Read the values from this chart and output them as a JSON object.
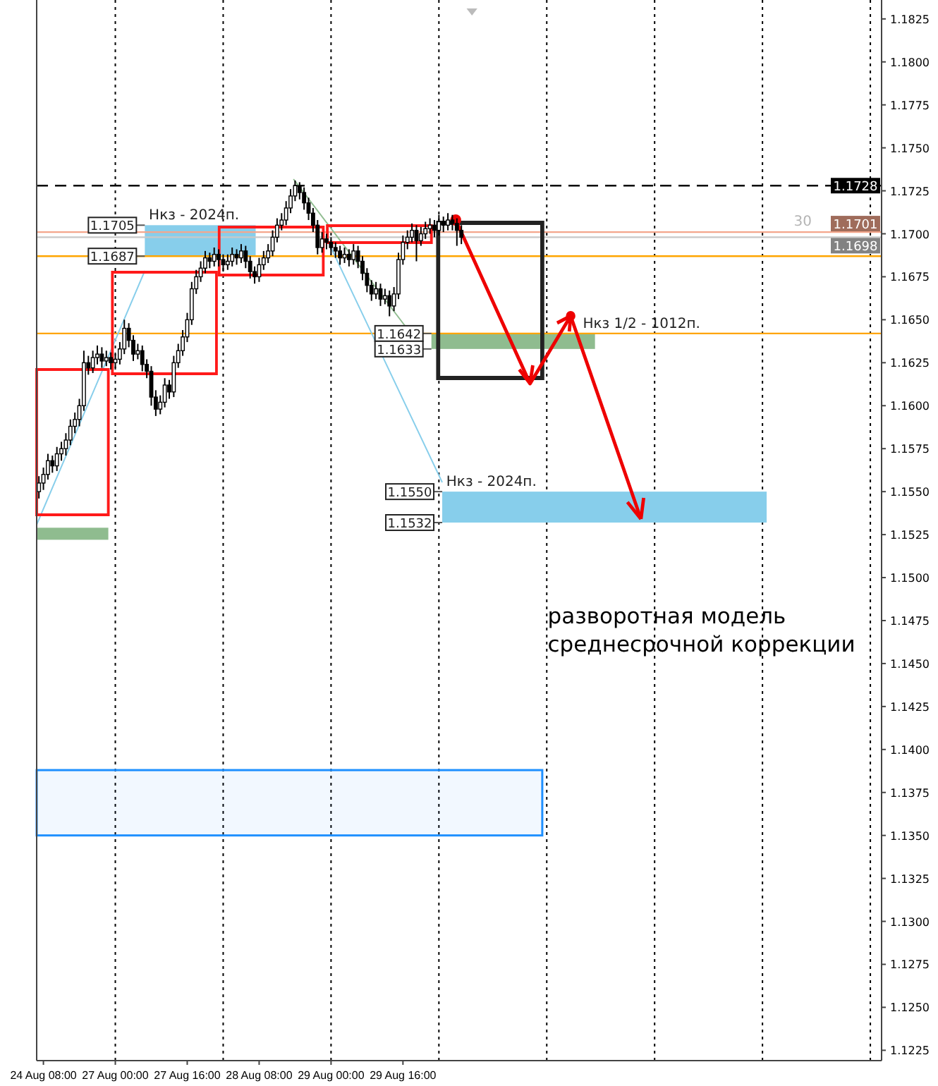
{
  "chart_data": {
    "type": "candlestick",
    "categories": [
      null,
      "24 Aug 08:00",
      null,
      null,
      null,
      null,
      null,
      null,
      null,
      null,
      null,
      null,
      null,
      null,
      null,
      null,
      null,
      "27 Aug 00:00",
      null,
      null,
      null,
      null,
      null,
      null,
      null,
      null,
      null,
      null,
      null,
      null,
      null,
      null,
      null,
      "27 Aug 16:00",
      null,
      null,
      null,
      null,
      null,
      null,
      null,
      null,
      null,
      null,
      null,
      null,
      null,
      null,
      null,
      "28 Aug 08:00",
      null,
      null,
      null,
      null,
      null,
      null,
      null,
      null,
      null,
      null,
      null,
      null,
      null,
      null,
      null,
      "29 Aug 00:00",
      null,
      null,
      null,
      null,
      null,
      null,
      null,
      null,
      null,
      null,
      null,
      null,
      null,
      null,
      null,
      "29 Aug 16:00",
      null,
      null,
      null,
      null,
      null,
      null,
      null,
      null,
      null,
      null,
      null,
      null,
      null,
      null,
      null,
      null,
      null,
      null,
      null,
      null,
      null,
      null,
      null,
      null,
      null,
      null,
      null,
      null,
      null,
      null,
      null,
      null,
      null,
      null,
      null,
      null,
      null,
      null,
      null,
      null,
      null,
      null,
      null,
      null,
      null,
      null,
      null,
      null,
      null,
      null,
      null,
      null,
      null,
      null,
      null,
      null,
      null,
      null,
      null,
      null,
      null,
      null,
      null,
      null,
      null,
      null,
      null,
      null,
      null,
      null,
      null,
      null,
      null,
      null,
      null,
      null,
      null,
      null,
      null,
      null,
      null,
      null,
      null,
      null,
      null,
      null,
      null,
      null,
      null,
      null,
      null,
      null,
      null,
      null,
      null,
      null,
      null,
      null,
      null,
      null,
      null,
      null,
      null,
      null,
      null,
      null
    ],
    "ohlc": [
      [
        1.155,
        1.1559,
        1.1546,
        1.1555
      ],
      [
        1.1555,
        1.1564,
        1.1551,
        1.156
      ],
      [
        1.156,
        1.1572,
        1.1557,
        1.1568
      ],
      [
        1.1568,
        1.1571,
        1.1561,
        1.1565
      ],
      [
        1.1565,
        1.1576,
        1.1562,
        1.1572
      ],
      [
        1.1572,
        1.1579,
        1.1568,
        1.1575
      ],
      [
        1.1575,
        1.1584,
        1.1571,
        1.158
      ],
      [
        1.158,
        1.1592,
        1.1577,
        1.1588
      ],
      [
        1.1588,
        1.1596,
        1.1584,
        1.1592
      ],
      [
        1.1592,
        1.1604,
        1.1588,
        1.16
      ],
      [
        1.16,
        1.1632,
        1.1597,
        1.1625
      ],
      [
        1.1625,
        1.1629,
        1.1618,
        1.1622
      ],
      [
        1.1622,
        1.1632,
        1.1619,
        1.1628
      ],
      [
        1.1628,
        1.1635,
        1.1624,
        1.163
      ],
      [
        1.163,
        1.1634,
        1.1622,
        1.1626
      ],
      [
        1.1626,
        1.1632,
        1.1623,
        1.1628
      ],
      [
        1.1628,
        1.1631,
        1.1621,
        1.1625
      ],
      [
        1.1625,
        1.163,
        1.1622,
        1.1627
      ],
      [
        1.1627,
        1.1637,
        1.1624,
        1.1633
      ],
      [
        1.1633,
        1.165,
        1.163,
        1.1645
      ],
      [
        1.1645,
        1.1648,
        1.1634,
        1.1638
      ],
      [
        1.1638,
        1.1641,
        1.1626,
        1.163
      ],
      [
        1.163,
        1.1636,
        1.1627,
        1.1632
      ],
      [
        1.1632,
        1.1635,
        1.162,
        1.1624
      ],
      [
        1.1624,
        1.1627,
        1.1616,
        1.162
      ],
      [
        1.162,
        1.1623,
        1.16,
        1.1605
      ],
      [
        1.1605,
        1.1609,
        1.1594,
        1.1598
      ],
      [
        1.1598,
        1.1606,
        1.1595,
        1.1602
      ],
      [
        1.1602,
        1.1616,
        1.1599,
        1.1612
      ],
      [
        1.1612,
        1.1615,
        1.1604,
        1.1608
      ],
      [
        1.1608,
        1.1629,
        1.1605,
        1.1625
      ],
      [
        1.1625,
        1.1636,
        1.1622,
        1.1632
      ],
      [
        1.1632,
        1.1644,
        1.1629,
        1.164
      ],
      [
        1.164,
        1.1654,
        1.1637,
        1.165
      ],
      [
        1.165,
        1.1672,
        1.1647,
        1.1668
      ],
      [
        1.1668,
        1.1679,
        1.1665,
        1.1675
      ],
      [
        1.1675,
        1.1684,
        1.1672,
        1.168
      ],
      [
        1.168,
        1.169,
        1.1677,
        1.1686
      ],
      [
        1.1686,
        1.1689,
        1.168,
        1.1684
      ],
      [
        1.1684,
        1.1692,
        1.1681,
        1.1688
      ],
      [
        1.1688,
        1.1691,
        1.1681,
        1.1685
      ],
      [
        1.1685,
        1.1688,
        1.1678,
        1.1682
      ],
      [
        1.1682,
        1.1688,
        1.1679,
        1.1684
      ],
      [
        1.1684,
        1.1692,
        1.1681,
        1.1688
      ],
      [
        1.1688,
        1.1691,
        1.1682,
        1.1686
      ],
      [
        1.1686,
        1.1694,
        1.1683,
        1.169
      ],
      [
        1.169,
        1.1693,
        1.168,
        1.1684
      ],
      [
        1.1684,
        1.1687,
        1.1674,
        1.1678
      ],
      [
        1.1678,
        1.1681,
        1.1671,
        1.1675
      ],
      [
        1.1675,
        1.1686,
        1.1672,
        1.1682
      ],
      [
        1.1682,
        1.169,
        1.1679,
        1.1686
      ],
      [
        1.1686,
        1.1694,
        1.1683,
        1.169
      ],
      [
        1.169,
        1.1702,
        1.1687,
        1.1698
      ],
      [
        1.1698,
        1.1709,
        1.1695,
        1.1705
      ],
      [
        1.1705,
        1.1712,
        1.1702,
        1.1708
      ],
      [
        1.1708,
        1.1719,
        1.1705,
        1.1715
      ],
      [
        1.1715,
        1.1726,
        1.1712,
        1.1722
      ],
      [
        1.1722,
        1.1731,
        1.1719,
        1.1728
      ],
      [
        1.1728,
        1.173,
        1.172,
        1.1724
      ],
      [
        1.1724,
        1.1727,
        1.1714,
        1.1718
      ],
      [
        1.1718,
        1.1721,
        1.1708,
        1.1712
      ],
      [
        1.1712,
        1.1715,
        1.1701,
        1.1705
      ],
      [
        1.1705,
        1.1708,
        1.1688,
        1.1692
      ],
      [
        1.1692,
        1.1701,
        1.1689,
        1.1697
      ],
      [
        1.1697,
        1.17,
        1.1691,
        1.1695
      ],
      [
        1.1695,
        1.1698,
        1.1688,
        1.1692
      ],
      [
        1.1692,
        1.1695,
        1.1686,
        1.169
      ],
      [
        1.169,
        1.1693,
        1.1682,
        1.1686
      ],
      [
        1.1686,
        1.1692,
        1.1683,
        1.1688
      ],
      [
        1.1688,
        1.1691,
        1.1681,
        1.1685
      ],
      [
        1.1685,
        1.1694,
        1.1682,
        1.169
      ],
      [
        1.169,
        1.1693,
        1.168,
        1.1684
      ],
      [
        1.1684,
        1.1687,
        1.1673,
        1.1677
      ],
      [
        1.1677,
        1.168,
        1.1666,
        1.167
      ],
      [
        1.167,
        1.1673,
        1.1661,
        1.1665
      ],
      [
        1.1665,
        1.1672,
        1.1662,
        1.1668
      ],
      [
        1.1668,
        1.1671,
        1.1658,
        1.1662
      ],
      [
        1.1662,
        1.1668,
        1.1659,
        1.1664
      ],
      [
        1.1664,
        1.1667,
        1.1652,
        1.1658
      ],
      [
        1.1658,
        1.1669,
        1.1655,
        1.1665
      ],
      [
        1.1665,
        1.1689,
        1.1662,
        1.1685
      ],
      [
        1.1685,
        1.1699,
        1.1682,
        1.1695
      ],
      [
        1.1695,
        1.1702,
        1.1691,
        1.1698
      ],
      [
        1.1698,
        1.1706,
        1.1695,
        1.1702
      ],
      [
        1.1702,
        1.1705,
        1.1684,
        1.1696
      ],
      [
        1.1696,
        1.1704,
        1.1693,
        1.17
      ],
      [
        1.17,
        1.1707,
        1.1697,
        1.1703
      ],
      [
        1.1703,
        1.1709,
        1.17,
        1.1705
      ],
      [
        1.1705,
        1.1708,
        1.1698,
        1.1702
      ],
      [
        1.1702,
        1.1711,
        1.1699,
        1.1707
      ],
      [
        1.1707,
        1.171,
        1.1701,
        1.1705
      ],
      [
        1.1705,
        1.1712,
        1.1702,
        1.1708
      ],
      [
        1.1708,
        1.1711,
        1.1702,
        1.1706
      ],
      [
        1.1706,
        1.1709,
        1.1693,
        1.1702
      ],
      [
        1.1702,
        1.1705,
        1.1694,
        1.1698
      ],
      null,
      null,
      null,
      null,
      null,
      null,
      null,
      null,
      null,
      null,
      null,
      null,
      null,
      null,
      null,
      null,
      null,
      null,
      null,
      null,
      null,
      null,
      null,
      null,
      null,
      null,
      null,
      null,
      null,
      null,
      null,
      null,
      null,
      null,
      null,
      null,
      null,
      null,
      null,
      null,
      null,
      null,
      null,
      null,
      null,
      null,
      null,
      null,
      null,
      null,
      null,
      null,
      null,
      null,
      null,
      null,
      null,
      null,
      null,
      null,
      null,
      null,
      null,
      null,
      null,
      null,
      null,
      null,
      null,
      null,
      null,
      null,
      null,
      null,
      null,
      null,
      null,
      null,
      null,
      null,
      null,
      null,
      null,
      null,
      null,
      null,
      null,
      null,
      null,
      null,
      null,
      null,
      null
    ],
    "ylim": [
      1.1219,
      1.1836
    ],
    "yticks": [
      1.1225,
      {
        "value": 1.125,
        "label": "1.1250"
      },
      1.1275,
      {
        "value": 1.13,
        "label": "1.1300"
      },
      1.1325,
      {
        "value": 1.135,
        "label": "1.1350"
      },
      1.1375,
      {
        "value": 1.14,
        "label": "1.1400"
      },
      1.1425,
      {
        "value": 1.145,
        "label": "1.1450"
      },
      1.1475,
      {
        "value": 1.15,
        "label": "1.1500"
      },
      1.1525,
      {
        "value": 1.155,
        "label": "1.1550"
      },
      1.1575,
      {
        "value": 1.16,
        "label": "1.1600"
      },
      1.1625,
      {
        "value": 1.165,
        "label": "1.1650"
      },
      1.1675,
      {
        "value": 1.17,
        "label": "1.1700"
      },
      1.1725,
      {
        "value": 1.175,
        "label": "1.1750"
      },
      1.1775,
      {
        "value": 1.18,
        "label": "1.1800"
      },
      1.1825
    ],
    "grid": "x",
    "ref_lines": [
      {
        "axis": "y",
        "value": 1.1728,
        "label": "1.1728",
        "color": "#000000",
        "line_style": "dashed"
      },
      {
        "axis": "y",
        "value": 1.1701,
        "label": "1.1701",
        "color": "#f4a68c",
        "line_style": "solid"
      },
      {
        "axis": "y",
        "value": 1.1698,
        "label": "1.1698",
        "color": "#c8c8c8",
        "line_style": "solid"
      },
      {
        "axis": "y",
        "value": 1.1687,
        "color": "#ffa500",
        "line_style": "solid"
      },
      {
        "axis": "y",
        "value": 1.1642,
        "color": "#ffa500",
        "line_style": "solid"
      }
    ],
    "bands": [
      {
        "axis": "y",
        "from": 1.1687,
        "to": 1.1705,
        "label": "Нкз - 2024п.",
        "color": "#87ceeb"
      },
      {
        "axis": "y",
        "from": 1.1633,
        "to": 1.1642,
        "label": "Нкз 1/2 - 1012п.",
        "color": "#8fbc8f"
      },
      {
        "axis": "y",
        "from": 1.1532,
        "to": 1.155,
        "label": "Нкз - 2024п.",
        "color": "#87ceeb"
      },
      {
        "axis": "y",
        "from": 1.1522,
        "to": 1.1529,
        "color": "#8fbc8f"
      },
      {
        "axis": "y",
        "from": 1.135,
        "to": 1.1388,
        "color": "#1e90ff"
      }
    ],
    "annotations": [
      "30",
      "разворотная модель среднесрочной коррекции",
      {
        "text": "1.1705",
        "y": 1.1705
      },
      {
        "text": "1.1687",
        "y": 1.1687
      },
      {
        "text": "1.1642",
        "y": 1.1642
      },
      {
        "text": "1.1633",
        "y": 1.1633
      },
      {
        "text": "1.1550",
        "y": 1.155
      },
      {
        "text": "1.1532",
        "y": 1.1532
      }
    ]
  }
}
